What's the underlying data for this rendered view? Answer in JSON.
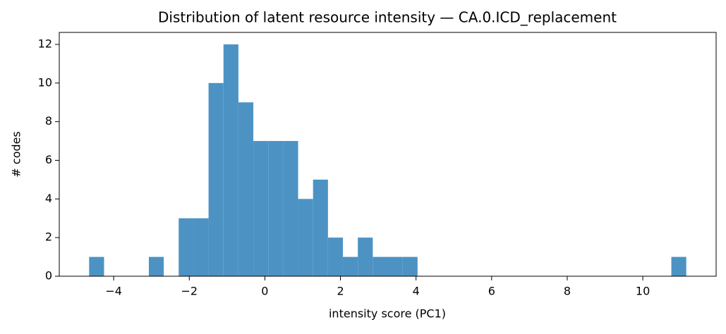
{
  "chart_data": {
    "type": "histogram",
    "title": "Distribution of latent resource intensity — CA.0.ICD_replacement",
    "x_label": "intensity score (PC1)",
    "y_label": "# codes",
    "bins": [
      -4.65,
      -4.255,
      -3.86,
      -3.465,
      -3.07,
      -2.675,
      -2.28,
      -1.885,
      -1.49,
      -1.095,
      -0.7,
      -0.305,
      0.09,
      0.485,
      0.88,
      1.275,
      1.67,
      2.065,
      2.46,
      2.855,
      3.25,
      3.645,
      4.04,
      4.435,
      4.83,
      5.225,
      5.62,
      6.015,
      6.41,
      6.805,
      7.2,
      7.595,
      7.99,
      8.385,
      8.78,
      9.175,
      9.57,
      9.965,
      10.36,
      10.755,
      11.15
    ],
    "values": [
      1,
      0,
      0,
      0,
      1,
      0,
      3,
      3,
      10,
      12,
      9,
      7,
      7,
      7,
      4,
      5,
      2,
      1,
      2,
      1,
      1,
      1,
      0,
      0,
      0,
      0,
      0,
      0,
      0,
      0,
      0,
      0,
      0,
      0,
      0,
      0,
      0,
      0,
      0,
      1
    ],
    "color": "#4c93c4",
    "xlim": [
      -5.44,
      11.94
    ],
    "xticks": [
      {
        "value": -4,
        "label": "−4"
      },
      {
        "value": -2,
        "label": "−2"
      },
      0,
      2,
      4,
      6,
      8,
      10
    ],
    "ylim": [
      0,
      12.62
    ],
    "yticks": [
      0,
      2,
      4,
      6,
      8,
      10,
      12
    ]
  }
}
